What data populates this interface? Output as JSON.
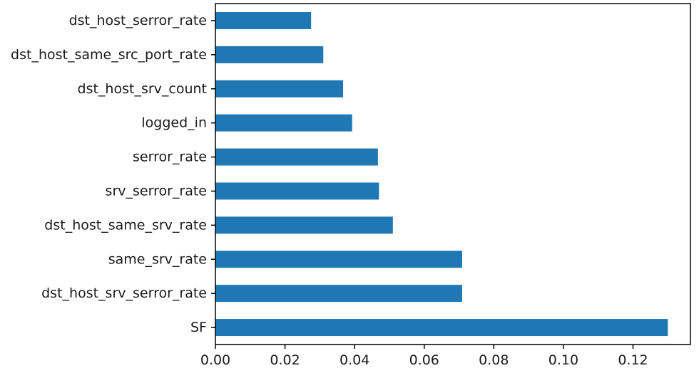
{
  "chart_data": {
    "type": "bar",
    "orientation": "horizontal",
    "title": "",
    "xlabel": "",
    "ylabel": "",
    "categories": [
      "dst_host_serror_rate",
      "dst_host_same_src_port_rate",
      "dst_host_srv_count",
      "logged_in",
      "serror_rate",
      "srv_serror_rate",
      "dst_host_same_srv_rate",
      "same_srv_rate",
      "dst_host_srv_serror_rate",
      "SF"
    ],
    "values": [
      0.0275,
      0.031,
      0.0367,
      0.0393,
      0.0467,
      0.047,
      0.051,
      0.0709,
      0.0709,
      0.13
    ],
    "xlim": [
      0.0,
      0.1365
    ],
    "xticks": [
      0.0,
      0.02,
      0.04,
      0.06,
      0.08,
      0.1,
      0.12
    ],
    "xtick_labels": [
      "0.00",
      "0.02",
      "0.04",
      "0.06",
      "0.08",
      "0.10",
      "0.12"
    ],
    "grid": false,
    "legend": "none",
    "bar_color": "#1f77b4"
  }
}
